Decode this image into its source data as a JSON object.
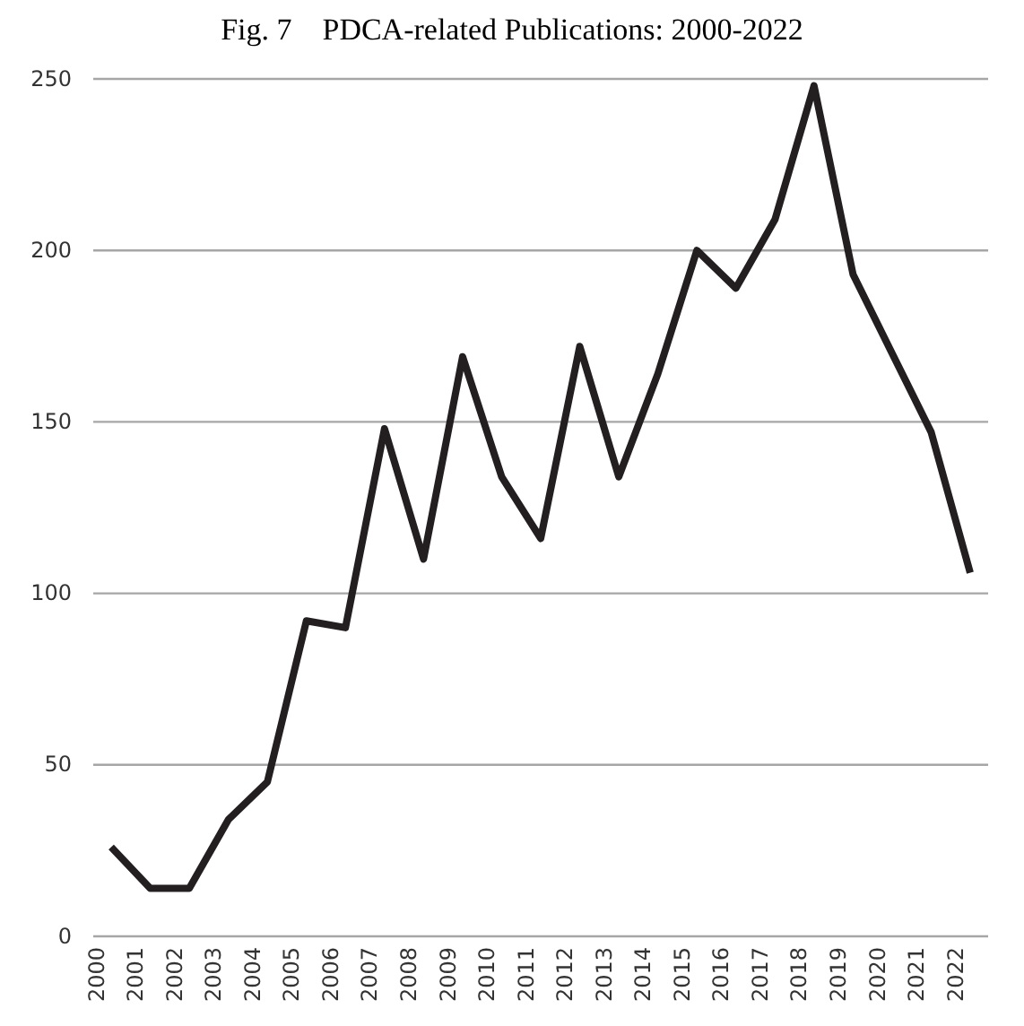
{
  "chart_data": {
    "type": "line",
    "title": "Fig. 7    PDCA-related Publications: 2000-2022",
    "categories": [
      "2000",
      "2001",
      "2002",
      "2003",
      "2004",
      "2005",
      "2006",
      "2007",
      "2008",
      "2009",
      "2010",
      "2011",
      "2012",
      "2013",
      "2014",
      "2015",
      "2016",
      "2017",
      "2018",
      "2019",
      "2020",
      "2021",
      "2022"
    ],
    "series": [
      {
        "color": "#231f20",
        "values": [
          26,
          14,
          14,
          34,
          45,
          92,
          90,
          148,
          110,
          169,
          134,
          116,
          172,
          134,
          164,
          200,
          189,
          209,
          248,
          193,
          170,
          147,
          106
        ]
      }
    ],
    "ylim": [
      0,
      250
    ],
    "yticks": [
      0,
      50,
      100,
      150,
      200,
      250
    ],
    "grid": "y",
    "marker": "none",
    "line_style": "solid"
  }
}
